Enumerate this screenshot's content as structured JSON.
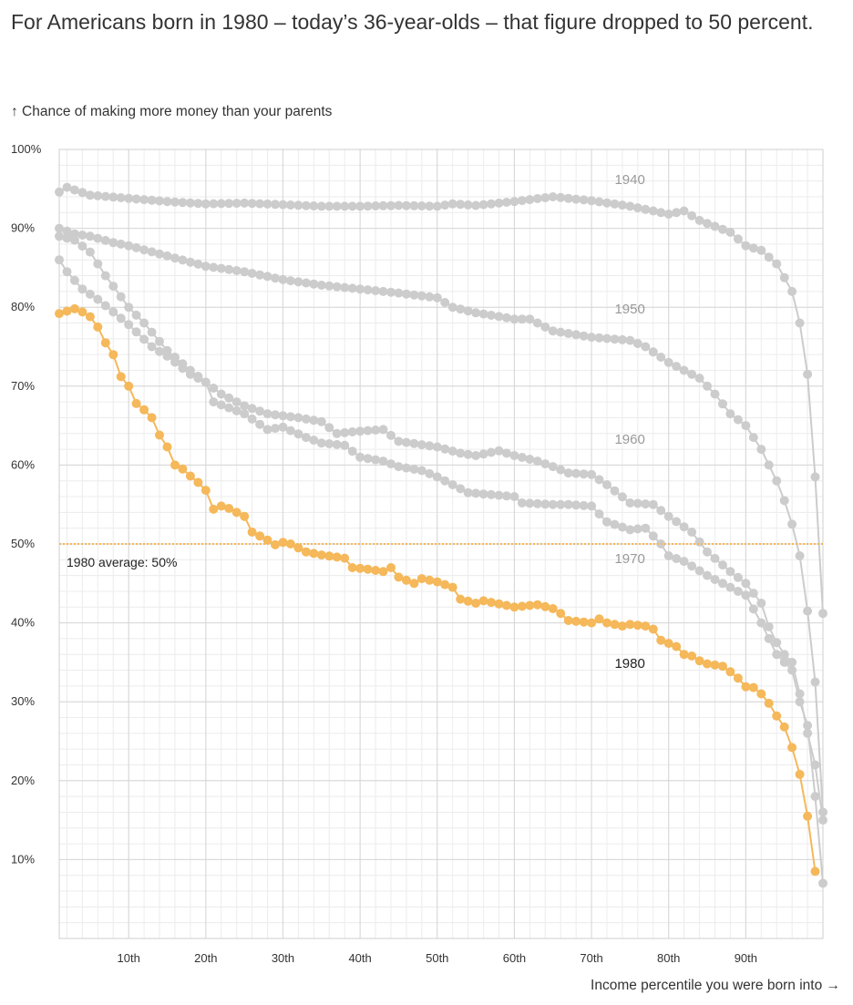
{
  "headline": "For Americans born in 1980 – today’s 36-year-olds –  that figure dropped to 50 percent.",
  "chart_data": {
    "type": "scatter",
    "title": "",
    "ylabel": "↑ Chance of making more money than your parents",
    "xlabel": "Income percentile you were born into →",
    "xlim": [
      1,
      100
    ],
    "ylim": [
      0,
      100
    ],
    "x_ticks": [
      10,
      20,
      30,
      40,
      50,
      60,
      70,
      80,
      90
    ],
    "x_tick_labels": [
      "10th",
      "20th",
      "30th",
      "40th",
      "50th",
      "60th",
      "70th",
      "80th",
      "90th"
    ],
    "y_ticks": [
      10,
      20,
      30,
      40,
      50,
      60,
      70,
      80,
      90,
      100
    ],
    "y_tick_labels": [
      "10%",
      "20%",
      "30%",
      "40%",
      "50%",
      "60%",
      "70%",
      "80%",
      "90%",
      "100%"
    ],
    "grid": true,
    "reference_line": {
      "y": 50,
      "label": "1980 average: 50%",
      "color": "#f5b85a"
    },
    "series": [
      {
        "name": "1940",
        "color": "#cccccc",
        "label_color": "#999999",
        "anchors": [
          [
            1,
            94.6
          ],
          [
            2,
            95.2
          ],
          [
            5,
            94.2
          ],
          [
            10,
            93.8
          ],
          [
            15,
            93.4
          ],
          [
            20,
            93.1
          ],
          [
            25,
            93.2
          ],
          [
            30,
            93.0
          ],
          [
            35,
            92.8
          ],
          [
            40,
            92.8
          ],
          [
            45,
            92.9
          ],
          [
            50,
            92.8
          ],
          [
            52,
            93.1
          ],
          [
            55,
            92.9
          ],
          [
            60,
            93.4
          ],
          [
            65,
            94.0
          ],
          [
            70,
            93.5
          ],
          [
            75,
            92.8
          ],
          [
            80,
            91.8
          ],
          [
            82,
            92.2
          ],
          [
            84,
            91.0
          ],
          [
            88,
            89.5
          ],
          [
            90,
            87.8
          ],
          [
            92,
            87.2
          ],
          [
            94,
            85.5
          ],
          [
            96,
            82.0
          ],
          [
            97,
            78.0
          ],
          [
            98,
            71.5
          ],
          [
            99,
            58.5
          ],
          [
            100,
            41.2
          ]
        ]
      },
      {
        "name": "1950",
        "color": "#cccccc",
        "label_color": "#999999",
        "anchors": [
          [
            1,
            90.0
          ],
          [
            3,
            89.3
          ],
          [
            5,
            89.0
          ],
          [
            8,
            88.2
          ],
          [
            10,
            87.8
          ],
          [
            15,
            86.5
          ],
          [
            20,
            85.2
          ],
          [
            25,
            84.5
          ],
          [
            30,
            83.5
          ],
          [
            35,
            82.8
          ],
          [
            40,
            82.3
          ],
          [
            45,
            81.8
          ],
          [
            50,
            81.2
          ],
          [
            52,
            80.0
          ],
          [
            55,
            79.3
          ],
          [
            60,
            78.5
          ],
          [
            62,
            78.5
          ],
          [
            65,
            77.0
          ],
          [
            70,
            76.2
          ],
          [
            75,
            75.8
          ],
          [
            77,
            75.0
          ],
          [
            80,
            73.0
          ],
          [
            84,
            71.0
          ],
          [
            86,
            69.0
          ],
          [
            88,
            66.5
          ],
          [
            90,
            65.0
          ],
          [
            92,
            62.0
          ],
          [
            94,
            58.0
          ],
          [
            95,
            55.5
          ],
          [
            96,
            52.5
          ],
          [
            97,
            48.5
          ],
          [
            98,
            41.5
          ],
          [
            99,
            32.5
          ],
          [
            100,
            16.0
          ]
        ]
      },
      {
        "name": "1960",
        "color": "#cccccc",
        "label_color": "#999999",
        "anchors": [
          [
            1,
            86.0
          ],
          [
            2,
            84.5
          ],
          [
            4,
            82.3
          ],
          [
            6,
            81.0
          ],
          [
            10,
            77.8
          ],
          [
            13,
            75.0
          ],
          [
            15,
            73.8
          ],
          [
            18,
            71.5
          ],
          [
            20,
            70.5
          ],
          [
            22,
            69.0
          ],
          [
            25,
            67.5
          ],
          [
            28,
            66.5
          ],
          [
            32,
            66.0
          ],
          [
            35,
            65.5
          ],
          [
            37,
            64.0
          ],
          [
            40,
            64.3
          ],
          [
            43,
            64.5
          ],
          [
            45,
            63.0
          ],
          [
            50,
            62.3
          ],
          [
            53,
            61.5
          ],
          [
            55,
            61.2
          ],
          [
            58,
            61.8
          ],
          [
            60,
            61.2
          ],
          [
            63,
            60.5
          ],
          [
            65,
            59.8
          ],
          [
            67,
            59.0
          ],
          [
            70,
            58.8
          ],
          [
            72,
            57.5
          ],
          [
            75,
            55.2
          ],
          [
            78,
            55.0
          ],
          [
            80,
            53.5
          ],
          [
            83,
            51.5
          ],
          [
            85,
            49.0
          ],
          [
            88,
            46.5
          ],
          [
            90,
            45.0
          ],
          [
            92,
            42.5
          ],
          [
            93,
            39.5
          ],
          [
            94,
            37.5
          ],
          [
            95,
            36.0
          ],
          [
            96,
            35.0
          ],
          [
            97,
            31.0
          ],
          [
            98,
            26.0
          ],
          [
            99,
            22.0
          ],
          [
            100,
            15.0
          ]
        ]
      },
      {
        "name": "1970",
        "color": "#cccccc",
        "label_color": "#999999",
        "anchors": [
          [
            1,
            89.0
          ],
          [
            3,
            88.5
          ],
          [
            5,
            87.0
          ],
          [
            7,
            84.0
          ],
          [
            10,
            80.0
          ],
          [
            12,
            78.0
          ],
          [
            15,
            74.5
          ],
          [
            18,
            72.0
          ],
          [
            20,
            70.5
          ],
          [
            21,
            68.0
          ],
          [
            25,
            66.5
          ],
          [
            28,
            64.5
          ],
          [
            30,
            64.8
          ],
          [
            33,
            63.5
          ],
          [
            35,
            62.8
          ],
          [
            38,
            62.5
          ],
          [
            40,
            61.0
          ],
          [
            43,
            60.5
          ],
          [
            45,
            59.8
          ],
          [
            48,
            59.3
          ],
          [
            50,
            58.5
          ],
          [
            52,
            57.5
          ],
          [
            54,
            56.5
          ],
          [
            60,
            56.0
          ],
          [
            61,
            55.2
          ],
          [
            65,
            55.0
          ],
          [
            67,
            55.0
          ],
          [
            70,
            54.8
          ],
          [
            72,
            52.8
          ],
          [
            75,
            51.8
          ],
          [
            77,
            52.0
          ],
          [
            79,
            50.0
          ],
          [
            80,
            48.5
          ],
          [
            82,
            47.8
          ],
          [
            85,
            46.0
          ],
          [
            87,
            45.0
          ],
          [
            90,
            43.5
          ],
          [
            92,
            40.0
          ],
          [
            94,
            36.0
          ],
          [
            96,
            34.0
          ],
          [
            97,
            30.0
          ],
          [
            98,
            27.0
          ],
          [
            99,
            18.0
          ],
          [
            100,
            7.0
          ]
        ]
      },
      {
        "name": "1980",
        "color": "#f5b85a",
        "label_color": "#222222",
        "anchors": [
          [
            1,
            79.2
          ],
          [
            2,
            79.5
          ],
          [
            3,
            79.8
          ],
          [
            4,
            79.4
          ],
          [
            5,
            78.8
          ],
          [
            6,
            77.5
          ],
          [
            7,
            75.5
          ],
          [
            8,
            74.0
          ],
          [
            9,
            71.2
          ],
          [
            10,
            70.0
          ],
          [
            11,
            67.8
          ],
          [
            12,
            67.0
          ],
          [
            13,
            66.0
          ],
          [
            14,
            63.8
          ],
          [
            15,
            62.3
          ],
          [
            16,
            60.0
          ],
          [
            17,
            59.5
          ],
          [
            18,
            58.6
          ],
          [
            19,
            57.8
          ],
          [
            20,
            56.8
          ],
          [
            21,
            54.4
          ],
          [
            22,
            54.8
          ],
          [
            23,
            54.5
          ],
          [
            24,
            54.0
          ],
          [
            25,
            53.5
          ],
          [
            26,
            51.5
          ],
          [
            27,
            51.0
          ],
          [
            28,
            50.5
          ],
          [
            29,
            49.9
          ],
          [
            30,
            50.2
          ],
          [
            31,
            50.0
          ],
          [
            32,
            49.5
          ],
          [
            33,
            49.0
          ],
          [
            35,
            48.6
          ],
          [
            38,
            48.2
          ],
          [
            39,
            47.0
          ],
          [
            41,
            46.8
          ],
          [
            43,
            46.5
          ],
          [
            44,
            47.0
          ],
          [
            45,
            45.8
          ],
          [
            47,
            45.0
          ],
          [
            48,
            45.6
          ],
          [
            50,
            45.2
          ],
          [
            52,
            44.5
          ],
          [
            53,
            43.0
          ],
          [
            55,
            42.5
          ],
          [
            56,
            42.8
          ],
          [
            58,
            42.4
          ],
          [
            60,
            42.0
          ],
          [
            63,
            42.3
          ],
          [
            65,
            41.8
          ],
          [
            66,
            41.2
          ],
          [
            67,
            40.3
          ],
          [
            70,
            40.0
          ],
          [
            71,
            40.5
          ],
          [
            72,
            40.0
          ],
          [
            74,
            39.6
          ],
          [
            75,
            39.8
          ],
          [
            77,
            39.6
          ],
          [
            78,
            39.2
          ],
          [
            79,
            37.8
          ],
          [
            81,
            37.0
          ],
          [
            82,
            36.0
          ],
          [
            83,
            35.8
          ],
          [
            84,
            35.2
          ],
          [
            85,
            34.8
          ],
          [
            87,
            34.5
          ],
          [
            88,
            33.8
          ],
          [
            89,
            33.0
          ],
          [
            90,
            31.9
          ],
          [
            91,
            31.8
          ],
          [
            92,
            31.0
          ],
          [
            93,
            29.8
          ],
          [
            94,
            28.2
          ],
          [
            95,
            26.8
          ],
          [
            96,
            24.2
          ],
          [
            97,
            20.8
          ],
          [
            98,
            15.5
          ],
          [
            99,
            8.5
          ]
        ]
      }
    ],
    "series_labels": [
      {
        "text": "1940",
        "x": 73,
        "y": 95.6
      },
      {
        "text": "1950",
        "x": 73,
        "y": 79.2
      },
      {
        "text": "1960",
        "x": 73,
        "y": 62.7
      },
      {
        "text": "1970",
        "x": 73,
        "y": 47.6
      },
      {
        "text": "1980",
        "x": 73,
        "y": 34.3
      }
    ]
  }
}
